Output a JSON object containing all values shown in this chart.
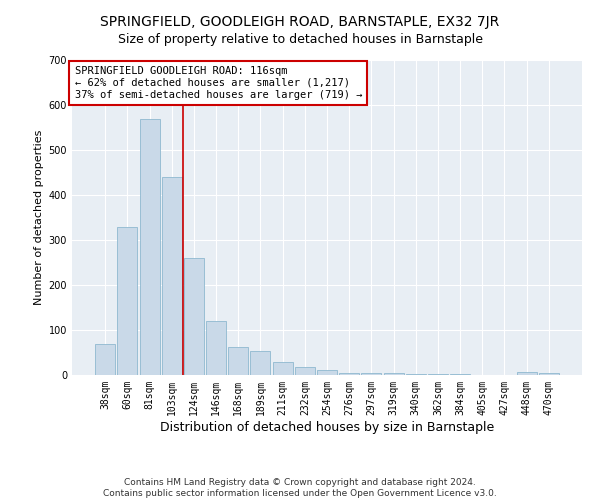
{
  "title": "SPRINGFIELD, GOODLEIGH ROAD, BARNSTAPLE, EX32 7JR",
  "subtitle": "Size of property relative to detached houses in Barnstaple",
  "xlabel": "Distribution of detached houses by size in Barnstaple",
  "ylabel": "Number of detached properties",
  "categories": [
    "38sqm",
    "60sqm",
    "81sqm",
    "103sqm",
    "124sqm",
    "146sqm",
    "168sqm",
    "189sqm",
    "211sqm",
    "232sqm",
    "254sqm",
    "276sqm",
    "297sqm",
    "319sqm",
    "340sqm",
    "362sqm",
    "384sqm",
    "405sqm",
    "427sqm",
    "448sqm",
    "470sqm"
  ],
  "values": [
    70,
    330,
    570,
    440,
    260,
    120,
    63,
    53,
    28,
    17,
    12,
    5,
    5,
    4,
    3,
    2,
    2,
    0,
    0,
    7,
    5
  ],
  "bar_color": "#c9d9e8",
  "bar_edge_color": "#8fb8d0",
  "vline_x_index": 3.5,
  "vline_color": "#cc0000",
  "annotation_text": "SPRINGFIELD GOODLEIGH ROAD: 116sqm\n← 62% of detached houses are smaller (1,217)\n37% of semi-detached houses are larger (719) →",
  "annotation_box_color": "#ffffff",
  "annotation_box_edge": "#cc0000",
  "ylim": [
    0,
    700
  ],
  "yticks": [
    0,
    100,
    200,
    300,
    400,
    500,
    600,
    700
  ],
  "footer_text": "Contains HM Land Registry data © Crown copyright and database right 2024.\nContains public sector information licensed under the Open Government Licence v3.0.",
  "plot_bg_color": "#e8eef4",
  "title_fontsize": 10,
  "subtitle_fontsize": 9,
  "xlabel_fontsize": 9,
  "ylabel_fontsize": 8,
  "tick_fontsize": 7,
  "annotation_fontsize": 7.5,
  "footer_fontsize": 6.5
}
